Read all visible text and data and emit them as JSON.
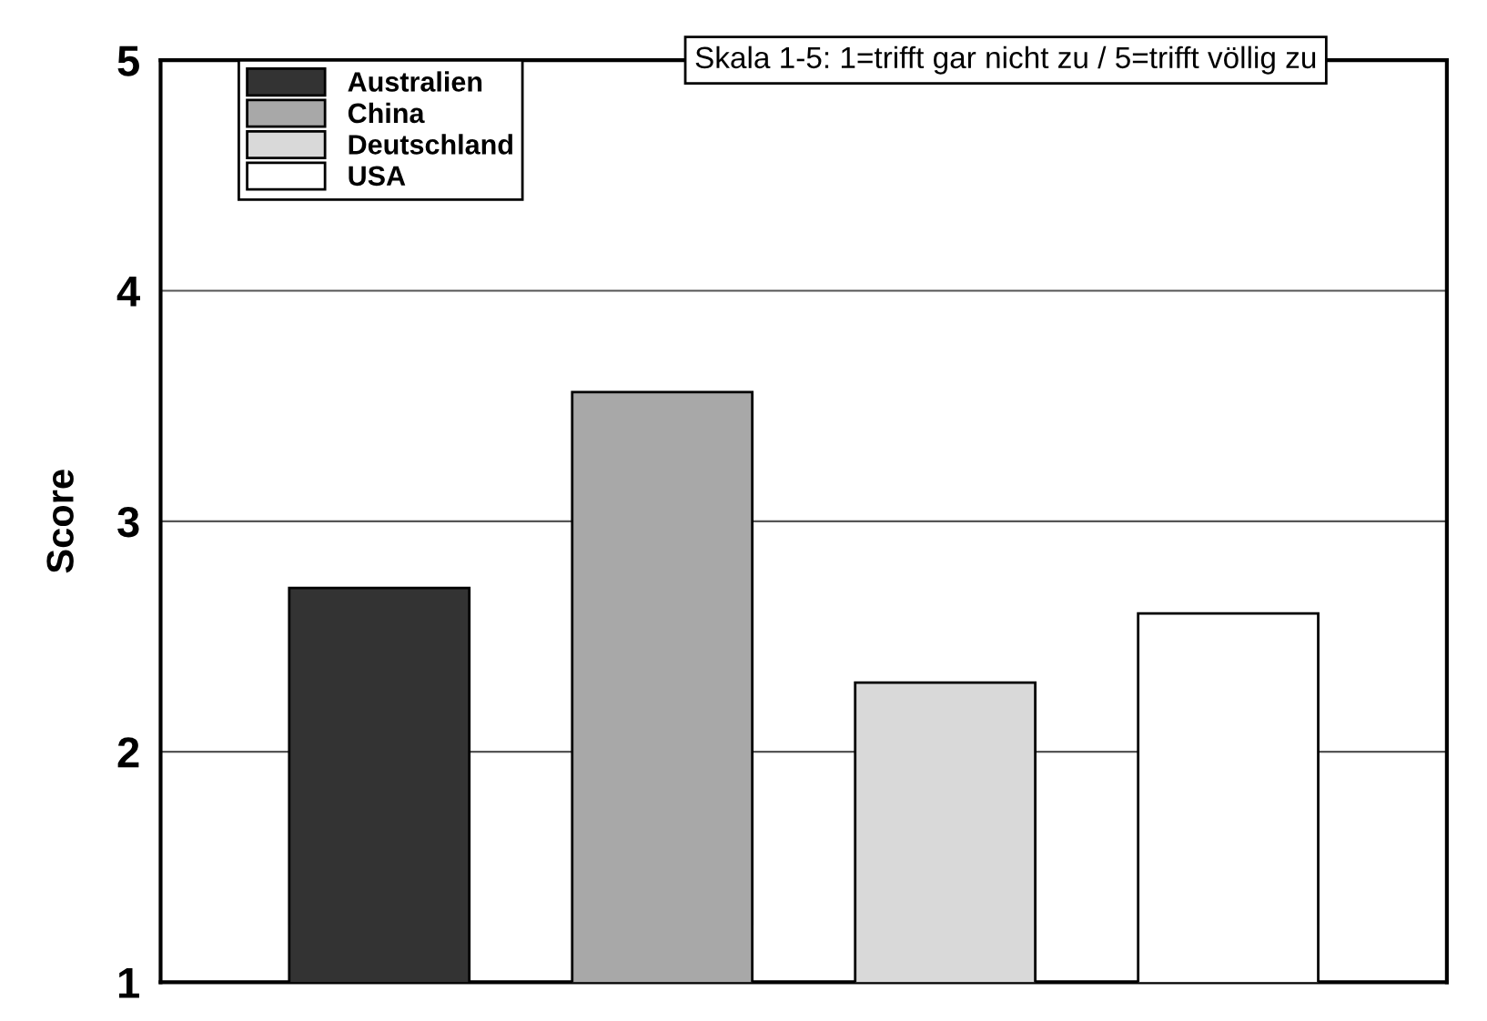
{
  "chart_data": {
    "type": "bar",
    "ylabel": "Score",
    "categories": [
      null
    ],
    "series": [
      {
        "name": "Australien",
        "color": "#333333",
        "values": [
          2.71
        ]
      },
      {
        "name": "China",
        "color": "#a8a8a8",
        "values": [
          3.56
        ]
      },
      {
        "name": "Deutschland",
        "color": "#d9d9d9",
        "values": [
          2.3
        ]
      },
      {
        "name": "USA",
        "color": "#ffffff",
        "values": [
          2.6
        ]
      }
    ],
    "annotations": [
      "Skala 1-5: 1=trifft gar nicht zu / 5=trifft völlig zu"
    ],
    "ylim": [
      1,
      5
    ],
    "yticks": [
      1,
      2,
      3,
      4,
      5
    ],
    "grid": "y",
    "legend": "top left",
    "tick_labels": "y"
  }
}
